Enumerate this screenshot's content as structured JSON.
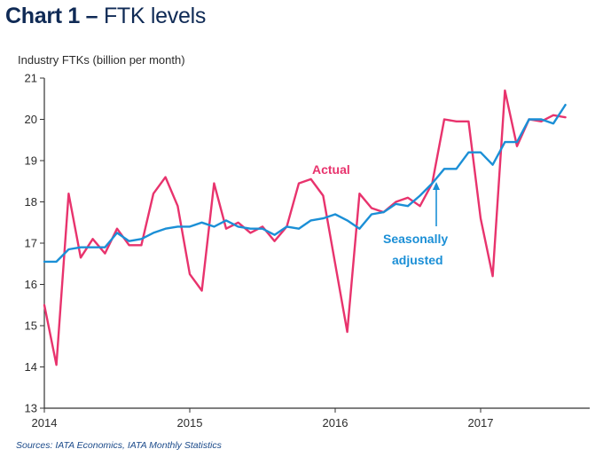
{
  "title": {
    "bold": "Chart 1 –",
    "rest": "FTK levels"
  },
  "source": "Sources: IATA Economics, IATA Monthly Statistics",
  "colors": {
    "actual": "#e8336d",
    "seasonally_adjusted": "#1b8fd6",
    "title": "#0f2a55"
  },
  "chart_data": {
    "type": "line",
    "ylabel": "Industry FTKs (billion per month)",
    "xlabel": "",
    "ylim": [
      13,
      21
    ],
    "yticks": [
      "13",
      "14",
      "15",
      "16",
      "17",
      "18",
      "19",
      "20",
      "21"
    ],
    "xticks": [
      {
        "label": "2014",
        "x": 2014.0
      },
      {
        "label": "2015",
        "x": 2015.0
      },
      {
        "label": "2016",
        "x": 2016.0
      },
      {
        "label": "2017",
        "x": 2017.0
      }
    ],
    "xlim": [
      2014.0,
      2017.75
    ],
    "grid": false,
    "legend": "none",
    "annotations": [
      {
        "text": "Actual",
        "series": "Actual"
      },
      {
        "text": "Seasonally",
        "series": "Seasonally adjusted"
      },
      {
        "text": "adjusted",
        "series": "Seasonally adjusted"
      }
    ],
    "series": [
      {
        "name": "Actual",
        "x": [
          2014.0,
          2014.083,
          2014.167,
          2014.25,
          2014.333,
          2014.417,
          2014.5,
          2014.583,
          2014.667,
          2014.75,
          2014.833,
          2014.917,
          2015.0,
          2015.083,
          2015.167,
          2015.25,
          2015.333,
          2015.417,
          2015.5,
          2015.583,
          2015.667,
          2015.75,
          2015.833,
          2015.917,
          2016.0,
          2016.083,
          2016.167,
          2016.25,
          2016.333,
          2016.417,
          2016.5,
          2016.583,
          2016.667,
          2016.75,
          2016.833,
          2016.917,
          2017.0,
          2017.083,
          2017.167,
          2017.25,
          2017.333,
          2017.417,
          2017.5,
          2017.583
        ],
        "y": [
          15.5,
          14.05,
          18.2,
          16.65,
          17.1,
          16.75,
          17.35,
          16.95,
          16.95,
          18.2,
          18.6,
          17.9,
          16.25,
          15.85,
          18.45,
          17.35,
          17.5,
          17.25,
          17.4,
          17.05,
          17.4,
          18.45,
          18.55,
          18.15,
          16.5,
          14.85,
          18.2,
          17.85,
          17.75,
          18.0,
          18.1,
          17.9,
          18.45,
          20.0,
          19.95,
          19.95,
          17.6,
          16.2,
          20.7,
          19.35,
          20.0,
          19.95,
          20.1,
          20.05
        ]
      },
      {
        "name": "Seasonally adjusted",
        "x": [
          2014.0,
          2014.083,
          2014.167,
          2014.25,
          2014.333,
          2014.417,
          2014.5,
          2014.583,
          2014.667,
          2014.75,
          2014.833,
          2014.917,
          2015.0,
          2015.083,
          2015.167,
          2015.25,
          2015.333,
          2015.417,
          2015.5,
          2015.583,
          2015.667,
          2015.75,
          2015.833,
          2015.917,
          2016.0,
          2016.083,
          2016.167,
          2016.25,
          2016.333,
          2016.417,
          2016.5,
          2016.583,
          2016.667,
          2016.75,
          2016.833,
          2016.917,
          2017.0,
          2017.083,
          2017.167,
          2017.25,
          2017.333,
          2017.417,
          2017.5,
          2017.583
        ],
        "y": [
          16.55,
          16.55,
          16.85,
          16.9,
          16.9,
          16.9,
          17.25,
          17.05,
          17.1,
          17.25,
          17.35,
          17.4,
          17.4,
          17.5,
          17.4,
          17.55,
          17.4,
          17.35,
          17.35,
          17.2,
          17.4,
          17.35,
          17.55,
          17.6,
          17.7,
          17.55,
          17.35,
          17.7,
          17.75,
          17.95,
          17.9,
          18.15,
          18.45,
          18.8,
          18.8,
          19.2,
          19.2,
          18.9,
          19.45,
          19.45,
          20.0,
          20.0,
          19.9,
          20.35
        ]
      }
    ]
  }
}
